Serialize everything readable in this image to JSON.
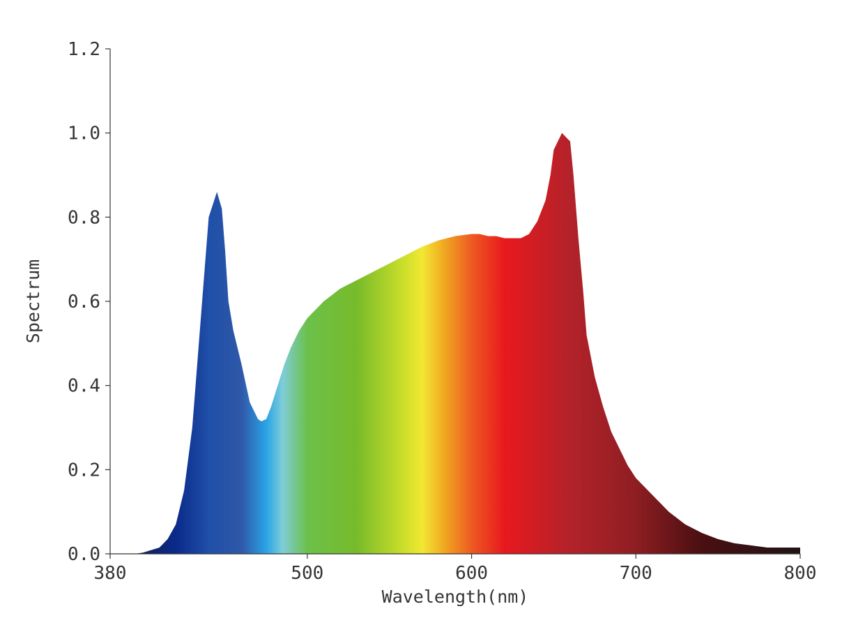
{
  "chart_data": {
    "type": "area",
    "title": "",
    "xlabel": "Wavelength(nm)",
    "ylabel": "Spectrum",
    "xlim": [
      380,
      800
    ],
    "ylim": [
      0,
      1.2
    ],
    "grid": false,
    "legend": "none",
    "x_ticks": [
      {
        "value": 380,
        "label": "380"
      },
      {
        "value": 500,
        "label": "500"
      },
      {
        "value": 600,
        "label": "600"
      },
      {
        "value": 700,
        "label": "700"
      },
      {
        "value": 800,
        "label": "800"
      }
    ],
    "y_ticks": [
      {
        "value": 0.0,
        "label": "0.0"
      },
      {
        "value": 0.2,
        "label": "0.2"
      },
      {
        "value": 0.4,
        "label": "0.4"
      },
      {
        "value": 0.6,
        "label": "0.6"
      },
      {
        "value": 0.8,
        "label": "0.8"
      },
      {
        "value": 1.0,
        "label": "1.0"
      },
      {
        "value": 1.2,
        "label": "1.2"
      }
    ],
    "series": [
      {
        "x": [
          380,
          395,
          400,
          410,
          415,
          420,
          425,
          430,
          435,
          440,
          445,
          448,
          450,
          452,
          455,
          460,
          465,
          470,
          472,
          475,
          478,
          482,
          486,
          490,
          495,
          500,
          505,
          510,
          515,
          520,
          530,
          540,
          550,
          560,
          570,
          580,
          590,
          600,
          605,
          610,
          615,
          620,
          630,
          635,
          640,
          645,
          648,
          650,
          655,
          660,
          662,
          665,
          668,
          670,
          675,
          680,
          685,
          690,
          695,
          700,
          710,
          720,
          730,
          740,
          750,
          760,
          770,
          780,
          790,
          800
        ],
        "y": [
          0.0,
          0.0,
          0.003,
          0.015,
          0.035,
          0.07,
          0.15,
          0.3,
          0.55,
          0.8,
          0.86,
          0.82,
          0.72,
          0.6,
          0.53,
          0.45,
          0.36,
          0.32,
          0.315,
          0.32,
          0.35,
          0.4,
          0.45,
          0.49,
          0.53,
          0.56,
          0.58,
          0.6,
          0.615,
          0.63,
          0.65,
          0.67,
          0.69,
          0.71,
          0.73,
          0.745,
          0.755,
          0.76,
          0.76,
          0.755,
          0.755,
          0.75,
          0.75,
          0.76,
          0.79,
          0.84,
          0.9,
          0.96,
          1.0,
          0.98,
          0.9,
          0.75,
          0.62,
          0.52,
          0.42,
          0.35,
          0.29,
          0.25,
          0.21,
          0.18,
          0.14,
          0.1,
          0.07,
          0.05,
          0.035,
          0.025,
          0.02,
          0.015,
          0.015,
          0.015
        ]
      }
    ],
    "colors": {
      "axis": "#333333",
      "text": "#333333",
      "spectrum_stops": [
        {
          "nm": 380,
          "color": "#1a1a2e"
        },
        {
          "nm": 420,
          "color": "#0a2a8a"
        },
        {
          "nm": 440,
          "color": "#1f4fa8"
        },
        {
          "nm": 460,
          "color": "#2f58a8"
        },
        {
          "nm": 475,
          "color": "#29a3e6"
        },
        {
          "nm": 485,
          "color": "#7fcdd8"
        },
        {
          "nm": 500,
          "color": "#6cc04a"
        },
        {
          "nm": 530,
          "color": "#77bb2a"
        },
        {
          "nm": 560,
          "color": "#cfe02a"
        },
        {
          "nm": 570,
          "color": "#f2e832"
        },
        {
          "nm": 585,
          "color": "#f0a020"
        },
        {
          "nm": 600,
          "color": "#ee5a22"
        },
        {
          "nm": 620,
          "color": "#e8191e"
        },
        {
          "nm": 660,
          "color": "#b3222a"
        },
        {
          "nm": 700,
          "color": "#8e1e22"
        },
        {
          "nm": 740,
          "color": "#4a0f12"
        },
        {
          "nm": 800,
          "color": "#1f1414"
        }
      ]
    }
  }
}
